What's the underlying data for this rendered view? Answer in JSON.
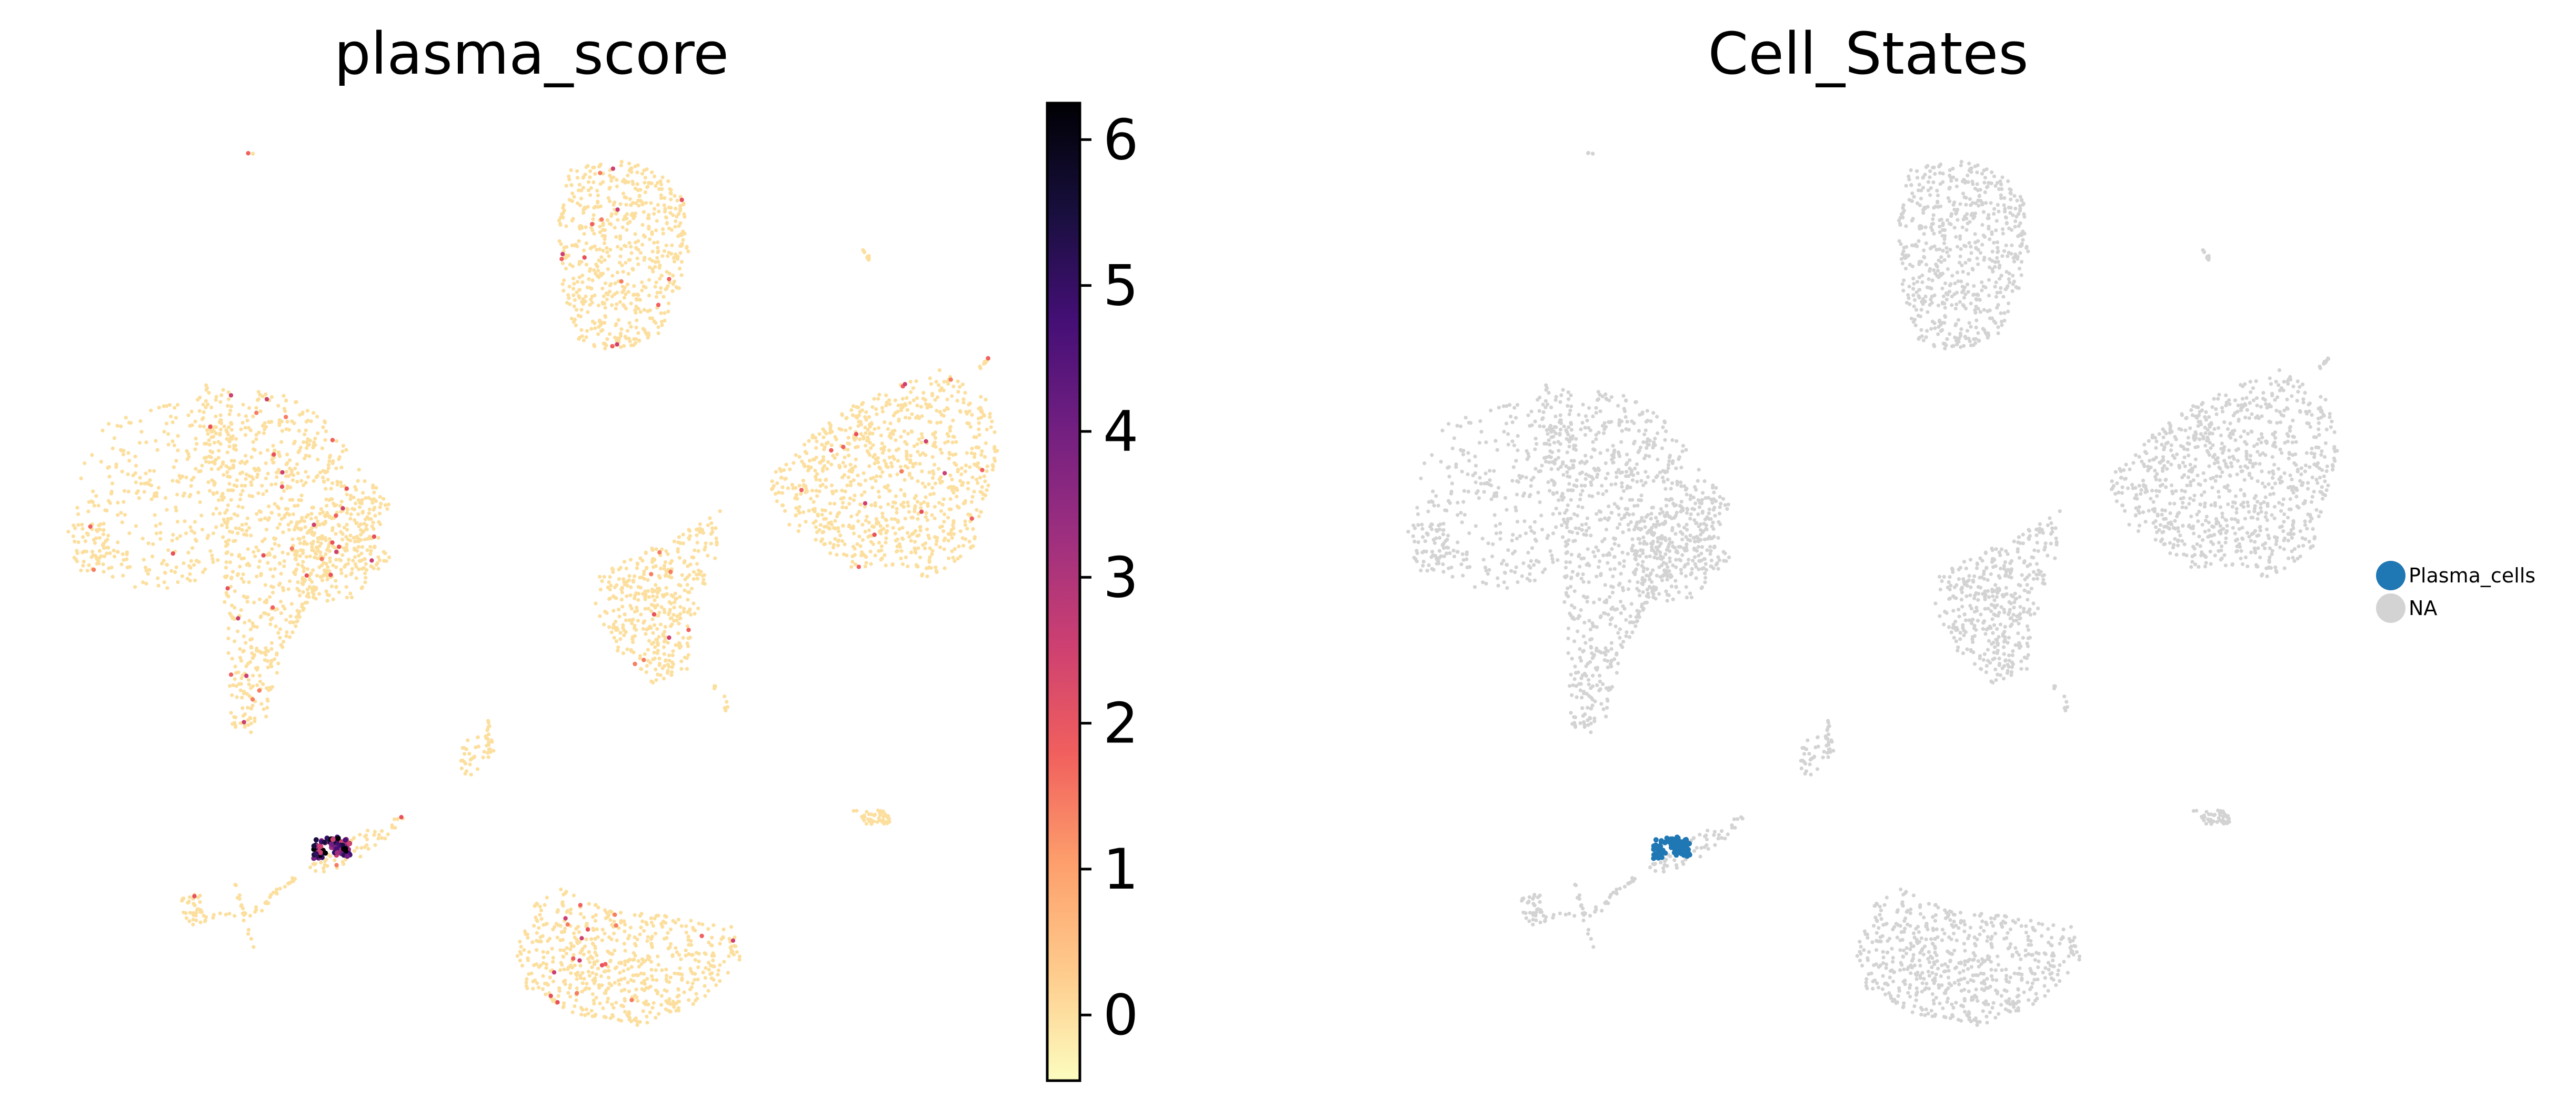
{
  "chart_data": [
    {
      "type": "scatter",
      "title": "plasma_score",
      "colormap": "magma_r",
      "point_color_default": "#fcdf9e",
      "colorbar": {
        "min": -0.45,
        "max": 6.25,
        "ticks": [
          0,
          1,
          2,
          3,
          4,
          5,
          6
        ],
        "tick_labels": [
          "0",
          "1",
          "2",
          "3",
          "4",
          "5",
          "6"
        ],
        "stops": [
          "#fcfdbf",
          "#fecb8c",
          "#fd9f6c",
          "#f1605d",
          "#cd4071",
          "#9e2f7f",
          "#721f81",
          "#440f76",
          "#180f3d",
          "#000004"
        ]
      },
      "axes_visible": false,
      "grid": false
    },
    {
      "type": "scatter",
      "title": "Cell_States",
      "point_color_default": "#d3d3d3",
      "legend": [
        {
          "name": "Plasma_cells",
          "color": "#1f77b4"
        },
        {
          "name": "NA",
          "color": "#d3d3d3"
        }
      ],
      "legend_position": "right",
      "axes_visible": false,
      "grid": false
    }
  ]
}
